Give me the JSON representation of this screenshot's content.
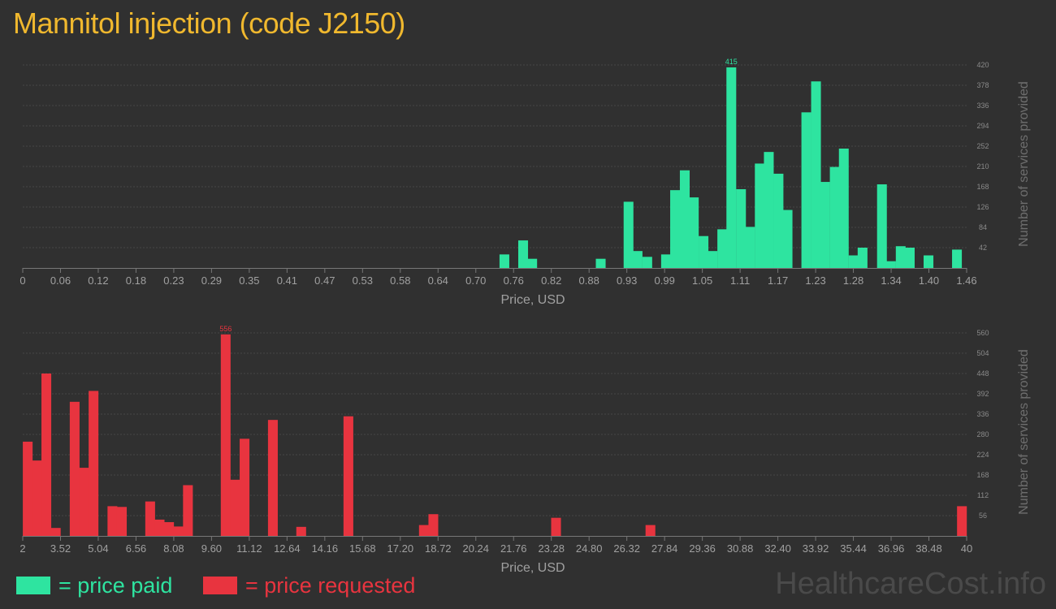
{
  "title": "Mannitol injection (code J2150)",
  "colors": {
    "paid": "#2ee4a0",
    "requested": "#e8343f",
    "title": "#f0b82e",
    "background": "#303030"
  },
  "legend": {
    "paid": "= price paid",
    "requested": "= price requested"
  },
  "watermark": "HealthcareCost.info",
  "chart_data": [
    {
      "type": "bar",
      "series": [
        {
          "name": "price paid"
        }
      ],
      "xlabel": "Price, USD",
      "ylabel": "Number of services provided",
      "ylim": [
        0,
        420
      ],
      "xlim": [
        0,
        1.46
      ],
      "x_ticks": [
        "0",
        "0.06",
        "0.12",
        "0.18",
        "0.23",
        "0.29",
        "0.35",
        "0.41",
        "0.47",
        "0.53",
        "0.58",
        "0.64",
        "0.70",
        "0.76",
        "0.82",
        "0.88",
        "0.93",
        "0.99",
        "1.05",
        "1.11",
        "1.17",
        "1.23",
        "1.28",
        "1.34",
        "1.40",
        "1.46"
      ],
      "y_ticks": [
        "42",
        "84",
        "126",
        "168",
        "210",
        "252",
        "294",
        "336",
        "378",
        "420"
      ],
      "max_label": "415",
      "grid": true,
      "color": "#2ee4a0",
      "bars": [
        {
          "x": 0.745,
          "y": 28
        },
        {
          "x": 0.774,
          "y": 57
        },
        {
          "x": 0.788,
          "y": 19
        },
        {
          "x": 0.894,
          "y": 19
        },
        {
          "x": 0.937,
          "y": 137
        },
        {
          "x": 0.951,
          "y": 35
        },
        {
          "x": 0.966,
          "y": 23
        },
        {
          "x": 0.995,
          "y": 28
        },
        {
          "x": 1.009,
          "y": 161
        },
        {
          "x": 1.024,
          "y": 202
        },
        {
          "x": 1.038,
          "y": 146
        },
        {
          "x": 1.053,
          "y": 66
        },
        {
          "x": 1.067,
          "y": 35
        },
        {
          "x": 1.082,
          "y": 80
        },
        {
          "x": 1.096,
          "y": 415
        },
        {
          "x": 1.111,
          "y": 163
        },
        {
          "x": 1.125,
          "y": 85
        },
        {
          "x": 1.14,
          "y": 216
        },
        {
          "x": 1.154,
          "y": 240
        },
        {
          "x": 1.169,
          "y": 195
        },
        {
          "x": 1.183,
          "y": 120
        },
        {
          "x": 1.212,
          "y": 322
        },
        {
          "x": 1.227,
          "y": 386
        },
        {
          "x": 1.241,
          "y": 178
        },
        {
          "x": 1.256,
          "y": 209
        },
        {
          "x": 1.27,
          "y": 247
        },
        {
          "x": 1.285,
          "y": 26
        },
        {
          "x": 1.299,
          "y": 42
        },
        {
          "x": 1.329,
          "y": 173
        },
        {
          "x": 1.343,
          "y": 14
        },
        {
          "x": 1.358,
          "y": 45
        },
        {
          "x": 1.372,
          "y": 42
        },
        {
          "x": 1.401,
          "y": 26
        },
        {
          "x": 1.445,
          "y": 38
        }
      ]
    },
    {
      "type": "bar",
      "series": [
        {
          "name": "price requested"
        }
      ],
      "xlabel": "Price, USD",
      "ylabel": "Number of services provided",
      "ylim": [
        0,
        560
      ],
      "xlim": [
        2,
        40
      ],
      "x_ticks": [
        "2",
        "3.52",
        "5.04",
        "6.56",
        "8.08",
        "9.60",
        "11.12",
        "12.64",
        "14.16",
        "15.68",
        "17.20",
        "18.72",
        "20.24",
        "21.76",
        "23.28",
        "24.80",
        "26.32",
        "27.84",
        "29.36",
        "30.88",
        "32.40",
        "33.92",
        "35.44",
        "36.96",
        "38.48",
        "40"
      ],
      "y_ticks": [
        "56",
        "112",
        "168",
        "224",
        "280",
        "336",
        "392",
        "448",
        "504",
        "560"
      ],
      "max_label": "556",
      "grid": true,
      "color": "#e8343f",
      "bars": [
        {
          "x": 2.2,
          "y": 260
        },
        {
          "x": 2.58,
          "y": 208
        },
        {
          "x": 2.95,
          "y": 448
        },
        {
          "x": 3.33,
          "y": 22
        },
        {
          "x": 4.09,
          "y": 370
        },
        {
          "x": 4.47,
          "y": 188
        },
        {
          "x": 4.85,
          "y": 400
        },
        {
          "x": 5.61,
          "y": 82
        },
        {
          "x": 5.99,
          "y": 80
        },
        {
          "x": 7.13,
          "y": 95
        },
        {
          "x": 7.51,
          "y": 45
        },
        {
          "x": 7.89,
          "y": 38
        },
        {
          "x": 8.27,
          "y": 26
        },
        {
          "x": 8.65,
          "y": 140
        },
        {
          "x": 10.17,
          "y": 556
        },
        {
          "x": 10.55,
          "y": 155
        },
        {
          "x": 10.93,
          "y": 268
        },
        {
          "x": 12.07,
          "y": 320
        },
        {
          "x": 13.21,
          "y": 25
        },
        {
          "x": 15.11,
          "y": 330
        },
        {
          "x": 18.15,
          "y": 30
        },
        {
          "x": 18.53,
          "y": 60
        },
        {
          "x": 23.47,
          "y": 50
        },
        {
          "x": 27.27,
          "y": 30
        },
        {
          "x": 39.81,
          "y": 82
        }
      ]
    }
  ]
}
